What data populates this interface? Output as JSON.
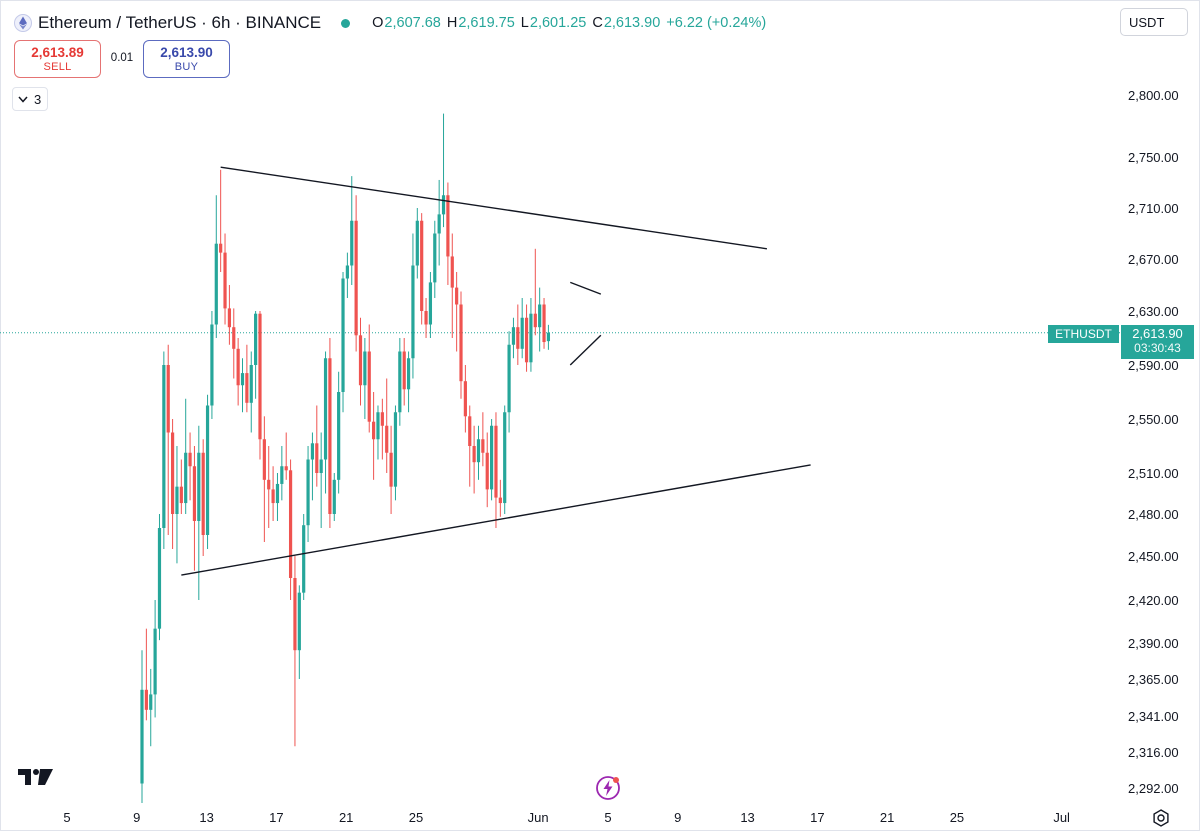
{
  "header": {
    "title": "Ethereum / TetherUS · 6h · BINANCE",
    "open_label": "O",
    "open": "2,607.68",
    "high_label": "H",
    "high": "2,619.75",
    "low_label": "L",
    "low": "2,601.25",
    "close_label": "C",
    "close": "2,613.90",
    "change": "+6.22 (+0.24%)",
    "status_color": "#26a69a"
  },
  "currency_selector": {
    "value": "USDT"
  },
  "trade": {
    "sell_price": "2,613.89",
    "sell_label": "SELL",
    "spread": "0.01",
    "buy_price": "2,613.90",
    "buy_label": "BUY"
  },
  "indicators": {
    "count": "3"
  },
  "price_tag": {
    "symbol": "ETHUSDT",
    "price": "2,613.90",
    "countdown": "03:30:43"
  },
  "colors": {
    "up": "#26a69a",
    "down": "#ef5350",
    "line": "#131722",
    "accent": "#9c27b0"
  },
  "icons": {
    "logo": "ethereum-logo-icon",
    "brand": "tradingview-logo-icon",
    "bolt": "lightning-icon",
    "settings": "gear-icon",
    "collapse": "chevron-down-icon"
  },
  "chart_data": {
    "type": "candlestick",
    "symbol": "ETHUSDT",
    "interval": "6h",
    "current_price": 2613.9,
    "y_ticks": [
      {
        "label": "2,800.00",
        "value": 2800
      },
      {
        "label": "2,750.00",
        "value": 2750
      },
      {
        "label": "2,710.00",
        "value": 2710
      },
      {
        "label": "2,670.00",
        "value": 2670
      },
      {
        "label": "2,630.00",
        "value": 2630
      },
      {
        "label": "2,590.00",
        "value": 2590
      },
      {
        "label": "2,550.00",
        "value": 2550
      },
      {
        "label": "2,510.00",
        "value": 2510
      },
      {
        "label": "2,480.00",
        "value": 2480
      },
      {
        "label": "2,450.00",
        "value": 2450
      },
      {
        "label": "2,420.00",
        "value": 2420
      },
      {
        "label": "2,390.00",
        "value": 2390
      },
      {
        "label": "2,365.00",
        "value": 2365
      },
      {
        "label": "2,341.00",
        "value": 2341
      },
      {
        "label": "2,316.00",
        "value": 2316
      },
      {
        "label": "2,292.00",
        "value": 2292
      }
    ],
    "x_ticks": [
      {
        "label": "5",
        "day": 5
      },
      {
        "label": "9",
        "day": 9
      },
      {
        "label": "13",
        "day": 13
      },
      {
        "label": "17",
        "day": 17
      },
      {
        "label": "21",
        "day": 21
      },
      {
        "label": "25",
        "day": 25
      },
      {
        "label": "Jun",
        "day": 32
      },
      {
        "label": "5",
        "day": 36
      },
      {
        "label": "9",
        "day": 40
      },
      {
        "label": "13",
        "day": 44
      },
      {
        "label": "17",
        "day": 48
      },
      {
        "label": "21",
        "day": 52
      },
      {
        "label": "25",
        "day": 56
      },
      {
        "label": "Jul",
        "day": 62
      }
    ],
    "candles": [
      [
        2295,
        2385,
        2282,
        2358
      ],
      [
        2358,
        2400,
        2338,
        2345
      ],
      [
        2345,
        2372,
        2320,
        2355
      ],
      [
        2355,
        2420,
        2340,
        2400
      ],
      [
        2400,
        2480,
        2392,
        2470
      ],
      [
        2470,
        2600,
        2455,
        2590
      ],
      [
        2590,
        2605,
        2465,
        2540
      ],
      [
        2540,
        2550,
        2455,
        2480
      ],
      [
        2480,
        2530,
        2445,
        2500
      ],
      [
        2500,
        2520,
        2480,
        2488
      ],
      [
        2488,
        2565,
        2480,
        2525
      ],
      [
        2525,
        2540,
        2490,
        2515
      ],
      [
        2515,
        2530,
        2440,
        2475
      ],
      [
        2475,
        2545,
        2420,
        2525
      ],
      [
        2525,
        2535,
        2450,
        2465
      ],
      [
        2465,
        2568,
        2455,
        2560
      ],
      [
        2560,
        2630,
        2550,
        2620
      ],
      [
        2620,
        2720,
        2610,
        2682
      ],
      [
        2682,
        2740,
        2660,
        2675
      ],
      [
        2675,
        2690,
        2620,
        2632
      ],
      [
        2632,
        2650,
        2605,
        2618
      ],
      [
        2618,
        2632,
        2580,
        2602
      ],
      [
        2602,
        2610,
        2560,
        2575
      ],
      [
        2575,
        2595,
        2555,
        2584
      ],
      [
        2584,
        2605,
        2555,
        2562
      ],
      [
        2562,
        2600,
        2540,
        2590
      ],
      [
        2590,
        2630,
        2565,
        2628
      ],
      [
        2628,
        2630,
        2520,
        2535
      ],
      [
        2535,
        2552,
        2460,
        2505
      ],
      [
        2505,
        2530,
        2470,
        2498
      ],
      [
        2498,
        2515,
        2475,
        2488
      ],
      [
        2488,
        2510,
        2475,
        2502
      ],
      [
        2502,
        2530,
        2490,
        2515
      ],
      [
        2515,
        2540,
        2505,
        2512
      ],
      [
        2512,
        2520,
        2420,
        2435
      ],
      [
        2435,
        2450,
        2320,
        2385
      ],
      [
        2385,
        2430,
        2365,
        2425
      ],
      [
        2425,
        2480,
        2420,
        2472
      ],
      [
        2472,
        2530,
        2460,
        2520
      ],
      [
        2520,
        2540,
        2490,
        2532
      ],
      [
        2532,
        2560,
        2500,
        2510
      ],
      [
        2510,
        2540,
        2470,
        2520
      ],
      [
        2520,
        2600,
        2495,
        2595
      ],
      [
        2595,
        2610,
        2470,
        2480
      ],
      [
        2480,
        2510,
        2475,
        2505
      ],
      [
        2505,
        2585,
        2495,
        2570
      ],
      [
        2570,
        2660,
        2555,
        2655
      ],
      [
        2655,
        2675,
        2640,
        2665
      ],
      [
        2665,
        2735,
        2650,
        2700
      ],
      [
        2700,
        2720,
        2600,
        2612
      ],
      [
        2612,
        2625,
        2560,
        2575
      ],
      [
        2575,
        2610,
        2550,
        2600
      ],
      [
        2600,
        2620,
        2540,
        2548
      ],
      [
        2548,
        2570,
        2505,
        2535
      ],
      [
        2535,
        2560,
        2520,
        2555
      ],
      [
        2555,
        2565,
        2520,
        2545
      ],
      [
        2545,
        2580,
        2510,
        2525
      ],
      [
        2525,
        2545,
        2480,
        2500
      ],
      [
        2500,
        2560,
        2490,
        2555
      ],
      [
        2555,
        2610,
        2545,
        2600
      ],
      [
        2600,
        2610,
        2560,
        2572
      ],
      [
        2572,
        2600,
        2555,
        2595
      ],
      [
        2595,
        2690,
        2580,
        2665
      ],
      [
        2665,
        2710,
        2655,
        2700
      ],
      [
        2700,
        2706,
        2620,
        2630
      ],
      [
        2630,
        2640,
        2610,
        2620
      ],
      [
        2620,
        2660,
        2610,
        2652
      ],
      [
        2652,
        2700,
        2640,
        2690
      ],
      [
        2690,
        2732,
        2665,
        2705
      ],
      [
        2705,
        2785,
        2695,
        2720
      ],
      [
        2720,
        2730,
        2650,
        2672
      ],
      [
        2672,
        2690,
        2610,
        2648
      ],
      [
        2648,
        2660,
        2600,
        2635
      ],
      [
        2635,
        2645,
        2565,
        2578
      ],
      [
        2578,
        2590,
        2540,
        2552
      ],
      [
        2552,
        2560,
        2500,
        2530
      ],
      [
        2530,
        2545,
        2495,
        2518
      ],
      [
        2518,
        2545,
        2505,
        2535
      ],
      [
        2535,
        2555,
        2515,
        2525
      ],
      [
        2525,
        2540,
        2485,
        2498
      ],
      [
        2498,
        2550,
        2490,
        2545
      ],
      [
        2545,
        2555,
        2470,
        2492
      ],
      [
        2492,
        2505,
        2478,
        2488
      ],
      [
        2488,
        2560,
        2480,
        2555
      ],
      [
        2555,
        2615,
        2540,
        2605
      ],
      [
        2605,
        2625,
        2595,
        2618
      ],
      [
        2618,
        2635,
        2590,
        2602
      ],
      [
        2602,
        2640,
        2595,
        2625
      ],
      [
        2625,
        2635,
        2585,
        2592
      ],
      [
        2592,
        2640,
        2585,
        2628
      ],
      [
        2628,
        2678,
        2612,
        2618
      ],
      [
        2618,
        2648,
        2600,
        2635
      ],
      [
        2635,
        2640,
        2602,
        2607
      ],
      [
        2607.68,
        2619.75,
        2601.25,
        2613.9
      ]
    ],
    "trendlines": [
      {
        "name": "descending-resistance",
        "from": {
          "candle": 18,
          "price": 2742
        },
        "to": {
          "candle": 143,
          "price": 2678
        }
      },
      {
        "name": "ascending-support",
        "from": {
          "candle": 9,
          "price": 2437
        },
        "to": {
          "candle": 153,
          "price": 2516
        }
      },
      {
        "name": "pennant-upper",
        "from": {
          "candle": 98,
          "price": 2652
        },
        "to": {
          "candle": 105,
          "price": 2643
        }
      },
      {
        "name": "pennant-lower",
        "from": {
          "candle": 98,
          "price": 2590
        },
        "to": {
          "candle": 105,
          "price": 2612
        }
      }
    ]
  }
}
